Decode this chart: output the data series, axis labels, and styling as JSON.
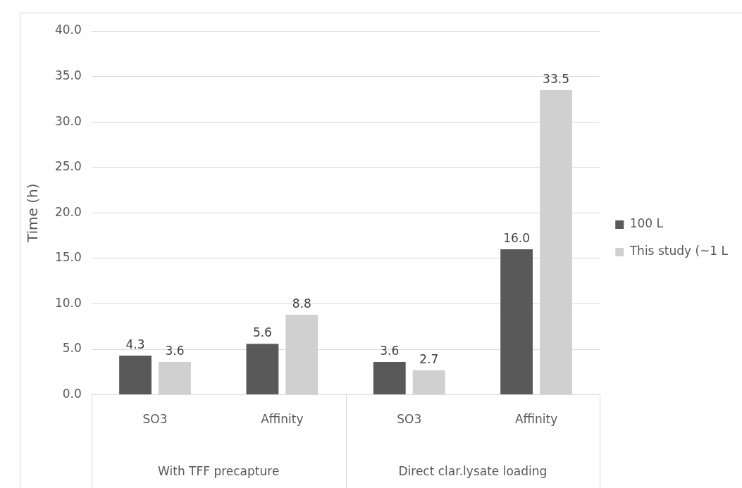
{
  "chart_data": {
    "type": "bar",
    "ylabel": "Time (h)",
    "categories": [
      "SO3",
      "Affinity",
      "SO3",
      "Affinity"
    ],
    "series": [
      {
        "name": "100 L",
        "color": "#595959",
        "values": [
          4.3,
          5.6,
          3.6,
          16.0
        ],
        "value_labels": [
          "4.3",
          "5.6",
          "3.6",
          "16.0"
        ]
      },
      {
        "name": "This study (~1 L",
        "color": "#d0d0d0",
        "values": [
          3.6,
          8.8,
          2.7,
          33.5
        ],
        "value_labels": [
          "3.6",
          "8.8",
          "2.7",
          "33.5"
        ]
      }
    ],
    "ylim": [
      0,
      40
    ],
    "yticks": [
      {
        "value": 0,
        "label": "0.0"
      },
      {
        "value": 5,
        "label": "5.0"
      },
      {
        "value": 10,
        "label": "10.0"
      },
      {
        "value": 15,
        "label": "15.0"
      },
      {
        "value": 20,
        "label": "20.0"
      },
      {
        "value": 25,
        "label": "25.0"
      },
      {
        "value": 30,
        "label": "30.0"
      },
      {
        "value": 35,
        "label": "35.0"
      },
      {
        "value": 40,
        "label": "40.0"
      }
    ],
    "annotations": [
      "With TFF precapture",
      "Direct clar.lysate loading"
    ],
    "grid": "y",
    "legend": "right"
  }
}
